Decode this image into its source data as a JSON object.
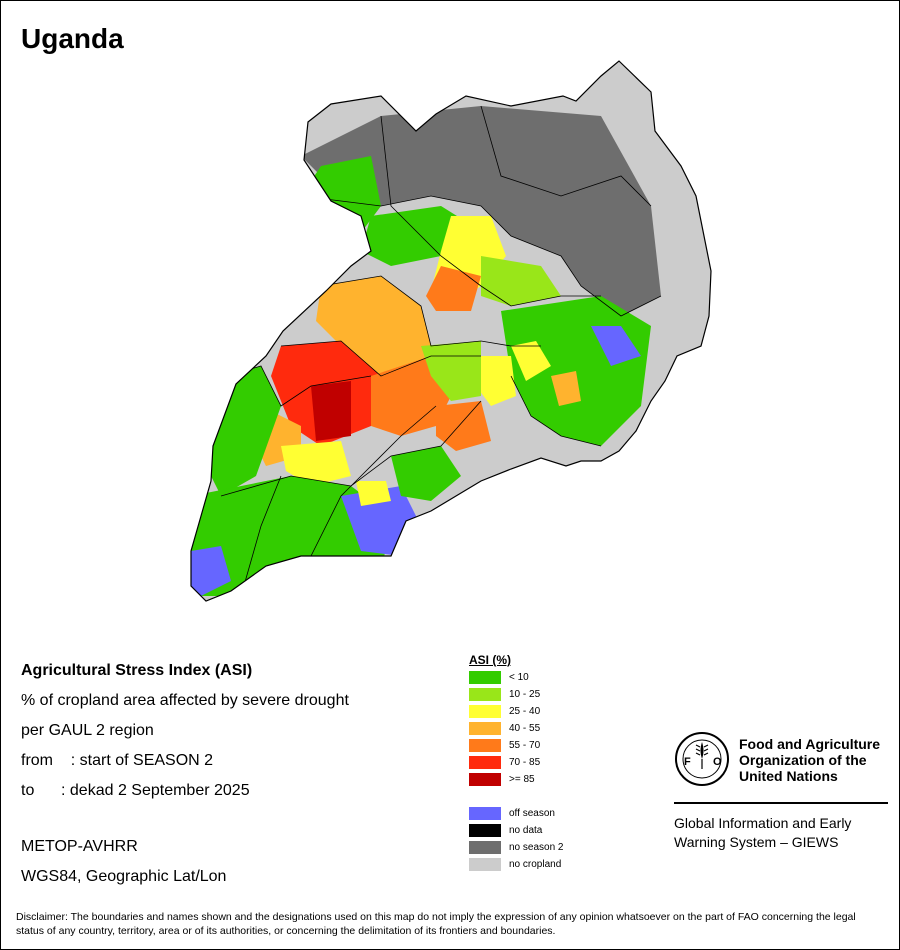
{
  "title": "Uganda",
  "info": {
    "heading": "Agricultural Stress Index (ASI)",
    "line1": "% of cropland area affected by severe drought",
    "line2": "per GAUL 2 region",
    "from_line": "from    : start of SEASON 2",
    "to_line": "to      : dekad 2 September 2025",
    "sensor": "METOP-AVHRR",
    "projection": "WGS84, Geographic Lat/Lon"
  },
  "legend": {
    "title": "ASI (%)",
    "classes": [
      {
        "label": "< 10",
        "color": "#33cc00"
      },
      {
        "label": "10 - 25",
        "color": "#99e619"
      },
      {
        "label": "25 - 40",
        "color": "#ffff33"
      },
      {
        "label": "40 - 55",
        "color": "#ffb32e"
      },
      {
        "label": "55 - 70",
        "color": "#ff7a1a"
      },
      {
        "label": "70 - 85",
        "color": "#ff2a0d"
      },
      {
        "label": ">= 85",
        "color": "#c00000"
      }
    ],
    "other": [
      {
        "label": "off season",
        "color": "#6666ff"
      },
      {
        "label": "no data",
        "color": "#000000"
      },
      {
        "label": "no season 2",
        "color": "#6e6e6e"
      },
      {
        "label": "no cropland",
        "color": "#cccccc"
      }
    ]
  },
  "fao": {
    "logo_text": "FAO",
    "logo_motto": "FIAT PANIS",
    "name_line1": "Food and Agriculture",
    "name_line2": "Organization of the",
    "name_line3": "United Nations",
    "giews_line1": "Global Information and Early",
    "giews_line2": "Warning System – GIEWS"
  },
  "disclaimer": "Disclaimer: The boundaries and names shown and the designations used on this map do not imply the expression of any opinion whatsoever on the part of FAO concerning the legal status of any country, territory, area or of its authorities, or concerning the delimitation of its frontiers and boundaries."
}
